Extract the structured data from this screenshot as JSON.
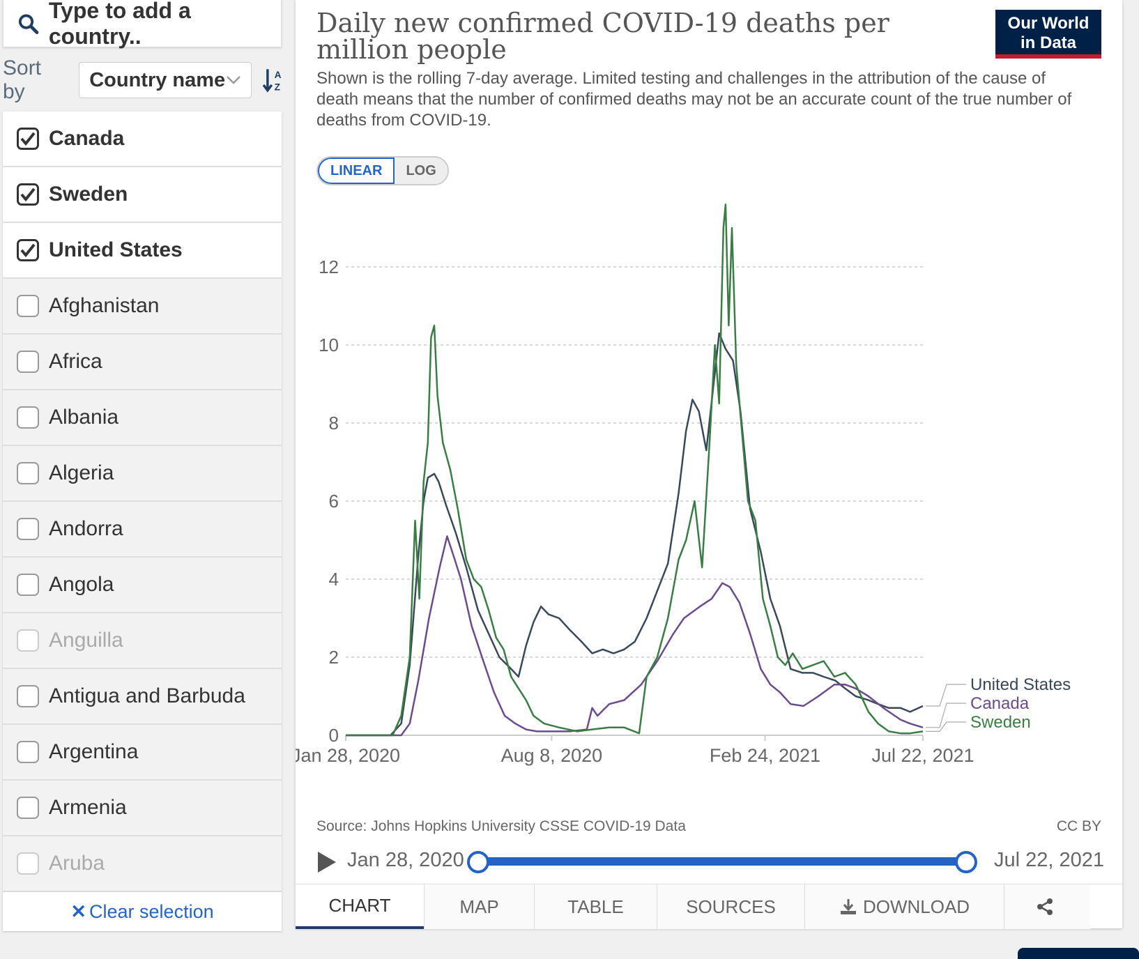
{
  "search": {
    "placeholder": "Type to add a country..",
    "icon": "search-icon"
  },
  "sort": {
    "label": "Sort by",
    "selected": "Country name",
    "direction_icon": "sort-alpha-icon"
  },
  "countries": [
    {
      "name": "Canada",
      "state": "selected"
    },
    {
      "name": "Sweden",
      "state": "selected"
    },
    {
      "name": "United States",
      "state": "selected"
    },
    {
      "name": "Afghanistan",
      "state": "unselected"
    },
    {
      "name": "Africa",
      "state": "unselected"
    },
    {
      "name": "Albania",
      "state": "unselected"
    },
    {
      "name": "Algeria",
      "state": "unselected"
    },
    {
      "name": "Andorra",
      "state": "unselected"
    },
    {
      "name": "Angola",
      "state": "unselected"
    },
    {
      "name": "Anguilla",
      "state": "disabled"
    },
    {
      "name": "Antigua and Barbuda",
      "state": "unselected"
    },
    {
      "name": "Argentina",
      "state": "unselected"
    },
    {
      "name": "Armenia",
      "state": "unselected"
    },
    {
      "name": "Aruba",
      "state": "disabled"
    }
  ],
  "clear_selection": "Clear selection",
  "header": {
    "title": "Daily new confirmed COVID-19 deaths per million people",
    "subtitle": "Shown is the rolling 7-day average. Limited testing and challenges in the attribution of the cause of death means that the number of confirmed deaths may not be an accurate count of the true number of deaths from COVID-19.",
    "logo_line1": "Our World",
    "logo_line2": "in Data"
  },
  "scale_toggle": {
    "linear": "LINEAR",
    "log": "LOG",
    "active": "linear"
  },
  "chart_data": {
    "type": "line",
    "title": "Daily new confirmed COVID-19 deaths per million people",
    "xlabel": "",
    "ylabel": "",
    "ylim": [
      0,
      12.5
    ],
    "xlim": [
      "2020-01-28",
      "2021-07-22"
    ],
    "yticks": [
      0,
      2,
      4,
      6,
      8,
      10,
      12
    ],
    "xticks": [
      "Jan 28, 2020",
      "Aug 8, 2020",
      "Feb 24, 2021",
      "Jul 22, 2021"
    ],
    "xtick_dates": [
      "2020-01-28",
      "2020-08-08",
      "2021-02-24",
      "2021-07-22"
    ],
    "grid": "horizontal-dashed",
    "legend": "right-end-labels",
    "series": [
      {
        "name": "United States",
        "color": "#38485a",
        "points": [
          [
            "2020-01-28",
            0
          ],
          [
            "2020-03-10",
            0
          ],
          [
            "2020-03-20",
            0.3
          ],
          [
            "2020-03-28",
            1.8
          ],
          [
            "2020-04-05",
            4.6
          ],
          [
            "2020-04-10",
            6.0
          ],
          [
            "2020-04-14",
            6.6
          ],
          [
            "2020-04-20",
            6.7
          ],
          [
            "2020-04-24",
            6.5
          ],
          [
            "2020-05-01",
            5.9
          ],
          [
            "2020-05-10",
            5.2
          ],
          [
            "2020-05-20",
            4.3
          ],
          [
            "2020-05-31",
            3.2
          ],
          [
            "2020-06-10",
            2.6
          ],
          [
            "2020-06-20",
            2.0
          ],
          [
            "2020-07-01",
            1.7
          ],
          [
            "2020-07-08",
            1.5
          ],
          [
            "2020-07-15",
            2.3
          ],
          [
            "2020-07-22",
            2.9
          ],
          [
            "2020-07-29",
            3.3
          ],
          [
            "2020-08-05",
            3.1
          ],
          [
            "2020-08-15",
            3.0
          ],
          [
            "2020-08-25",
            2.7
          ],
          [
            "2020-09-05",
            2.4
          ],
          [
            "2020-09-15",
            2.1
          ],
          [
            "2020-09-25",
            2.2
          ],
          [
            "2020-10-05",
            2.1
          ],
          [
            "2020-10-15",
            2.2
          ],
          [
            "2020-10-25",
            2.4
          ],
          [
            "2020-11-05",
            3.0
          ],
          [
            "2020-11-15",
            3.7
          ],
          [
            "2020-11-25",
            4.4
          ],
          [
            "2020-12-05",
            6.2
          ],
          [
            "2020-12-12",
            7.8
          ],
          [
            "2020-12-18",
            8.6
          ],
          [
            "2020-12-24",
            8.3
          ],
          [
            "2020-12-31",
            7.3
          ],
          [
            "2021-01-06",
            8.8
          ],
          [
            "2021-01-12",
            10.3
          ],
          [
            "2021-01-18",
            9.9
          ],
          [
            "2021-01-25",
            9.6
          ],
          [
            "2021-02-01",
            8.3
          ],
          [
            "2021-02-10",
            5.8
          ],
          [
            "2021-02-20",
            4.7
          ],
          [
            "2021-03-01",
            3.5
          ],
          [
            "2021-03-10",
            2.8
          ],
          [
            "2021-03-20",
            1.7
          ],
          [
            "2021-03-31",
            1.6
          ],
          [
            "2021-04-10",
            1.6
          ],
          [
            "2021-04-20",
            1.5
          ],
          [
            "2021-05-01",
            1.4
          ],
          [
            "2021-05-10",
            1.2
          ],
          [
            "2021-05-20",
            1.0
          ],
          [
            "2021-06-01",
            0.9
          ],
          [
            "2021-06-10",
            0.8
          ],
          [
            "2021-06-20",
            0.7
          ],
          [
            "2021-07-01",
            0.7
          ],
          [
            "2021-07-10",
            0.6
          ],
          [
            "2021-07-22",
            0.75
          ]
        ]
      },
      {
        "name": "Canada",
        "color": "#6b4b8c",
        "points": [
          [
            "2020-01-28",
            0
          ],
          [
            "2020-03-20",
            0
          ],
          [
            "2020-03-28",
            0.3
          ],
          [
            "2020-04-05",
            1.4
          ],
          [
            "2020-04-15",
            3.0
          ],
          [
            "2020-04-25",
            4.3
          ],
          [
            "2020-05-02",
            5.1
          ],
          [
            "2020-05-08",
            4.6
          ],
          [
            "2020-05-15",
            4.0
          ],
          [
            "2020-05-25",
            2.8
          ],
          [
            "2020-06-05",
            1.9
          ],
          [
            "2020-06-15",
            1.1
          ],
          [
            "2020-06-25",
            0.5
          ],
          [
            "2020-07-05",
            0.3
          ],
          [
            "2020-07-15",
            0.15
          ],
          [
            "2020-07-25",
            0.1
          ],
          [
            "2020-08-10",
            0.1
          ],
          [
            "2020-08-25",
            0.1
          ],
          [
            "2020-09-10",
            0.15
          ],
          [
            "2020-09-15",
            0.7
          ],
          [
            "2020-09-20",
            0.5
          ],
          [
            "2020-10-01",
            0.8
          ],
          [
            "2020-10-15",
            0.9
          ],
          [
            "2020-10-31",
            1.3
          ],
          [
            "2020-11-15",
            1.9
          ],
          [
            "2020-11-30",
            2.6
          ],
          [
            "2020-12-10",
            3.0
          ],
          [
            "2020-12-25",
            3.3
          ],
          [
            "2021-01-05",
            3.5
          ],
          [
            "2021-01-15",
            3.9
          ],
          [
            "2021-01-22",
            3.8
          ],
          [
            "2021-01-31",
            3.4
          ],
          [
            "2021-02-10",
            2.6
          ],
          [
            "2021-02-20",
            1.7
          ],
          [
            "2021-03-01",
            1.3
          ],
          [
            "2021-03-10",
            1.1
          ],
          [
            "2021-03-20",
            0.8
          ],
          [
            "2021-04-01",
            0.75
          ],
          [
            "2021-04-15",
            1.0
          ],
          [
            "2021-04-30",
            1.3
          ],
          [
            "2021-05-10",
            1.3
          ],
          [
            "2021-05-20",
            1.2
          ],
          [
            "2021-06-01",
            1.0
          ],
          [
            "2021-06-15",
            0.7
          ],
          [
            "2021-07-01",
            0.4
          ],
          [
            "2021-07-10",
            0.3
          ],
          [
            "2021-07-22",
            0.2
          ]
        ]
      },
      {
        "name": "Sweden",
        "color": "#3a7d44",
        "points": [
          [
            "2020-01-28",
            0
          ],
          [
            "2020-03-12",
            0
          ],
          [
            "2020-03-20",
            0.5
          ],
          [
            "2020-03-28",
            2.0
          ],
          [
            "2020-04-02",
            5.5
          ],
          [
            "2020-04-06",
            3.5
          ],
          [
            "2020-04-10",
            6.5
          ],
          [
            "2020-04-14",
            7.5
          ],
          [
            "2020-04-17",
            10.2
          ],
          [
            "2020-04-20",
            10.5
          ],
          [
            "2020-04-23",
            8.7
          ],
          [
            "2020-04-28",
            7.5
          ],
          [
            "2020-05-05",
            6.8
          ],
          [
            "2020-05-12",
            5.8
          ],
          [
            "2020-05-20",
            4.5
          ],
          [
            "2020-05-27",
            4.0
          ],
          [
            "2020-06-03",
            3.8
          ],
          [
            "2020-06-10",
            3.2
          ],
          [
            "2020-06-17",
            2.5
          ],
          [
            "2020-06-24",
            2.2
          ],
          [
            "2020-07-01",
            1.5
          ],
          [
            "2020-07-08",
            1.2
          ],
          [
            "2020-07-15",
            0.9
          ],
          [
            "2020-07-22",
            0.5
          ],
          [
            "2020-08-01",
            0.3
          ],
          [
            "2020-08-15",
            0.2
          ],
          [
            "2020-09-01",
            0.1
          ],
          [
            "2020-09-15",
            0.15
          ],
          [
            "2020-10-01",
            0.2
          ],
          [
            "2020-10-15",
            0.2
          ],
          [
            "2020-10-29",
            0.05
          ],
          [
            "2020-11-05",
            1.5
          ],
          [
            "2020-11-15",
            2.0
          ],
          [
            "2020-11-25",
            3.0
          ],
          [
            "2020-12-05",
            4.5
          ],
          [
            "2020-12-12",
            5.0
          ],
          [
            "2020-12-20",
            6.0
          ],
          [
            "2020-12-27",
            4.3
          ],
          [
            "2021-01-03",
            7.5
          ],
          [
            "2021-01-08",
            10.0
          ],
          [
            "2021-01-12",
            8.5
          ],
          [
            "2021-01-16",
            13.0
          ],
          [
            "2021-01-18",
            13.6
          ],
          [
            "2021-01-21",
            10.5
          ],
          [
            "2021-01-24",
            13.0
          ],
          [
            "2021-01-28",
            9.5
          ],
          [
            "2021-02-01",
            8.2
          ],
          [
            "2021-02-08",
            6.0
          ],
          [
            "2021-02-15",
            5.5
          ],
          [
            "2021-02-22",
            3.5
          ],
          [
            "2021-03-01",
            2.8
          ],
          [
            "2021-03-08",
            2.0
          ],
          [
            "2021-03-15",
            1.8
          ],
          [
            "2021-03-22",
            2.1
          ],
          [
            "2021-03-31",
            1.7
          ],
          [
            "2021-04-10",
            1.8
          ],
          [
            "2021-04-20",
            1.9
          ],
          [
            "2021-04-30",
            1.5
          ],
          [
            "2021-05-10",
            1.6
          ],
          [
            "2021-05-20",
            1.3
          ],
          [
            "2021-06-01",
            0.6
          ],
          [
            "2021-06-10",
            0.3
          ],
          [
            "2021-06-20",
            0.1
          ],
          [
            "2021-07-01",
            0.05
          ],
          [
            "2021-07-10",
            0.05
          ],
          [
            "2021-07-22",
            0.1
          ]
        ]
      }
    ]
  },
  "footer": {
    "source": "Source: Johns Hopkins University CSSE COVID-19 Data",
    "license": "CC BY"
  },
  "timeline": {
    "start": "Jan 28, 2020",
    "end": "Jul 22, 2021",
    "range_start_fraction": 0,
    "range_end_fraction": 1
  },
  "tabs": [
    {
      "label": "CHART",
      "active": true
    },
    {
      "label": "MAP",
      "active": false
    },
    {
      "label": "TABLE",
      "active": false
    },
    {
      "label": "SOURCES",
      "active": false
    },
    {
      "label": "DOWNLOAD",
      "active": false,
      "icon": "download-icon"
    },
    {
      "label": "",
      "active": false,
      "icon": "share-icon"
    }
  ]
}
